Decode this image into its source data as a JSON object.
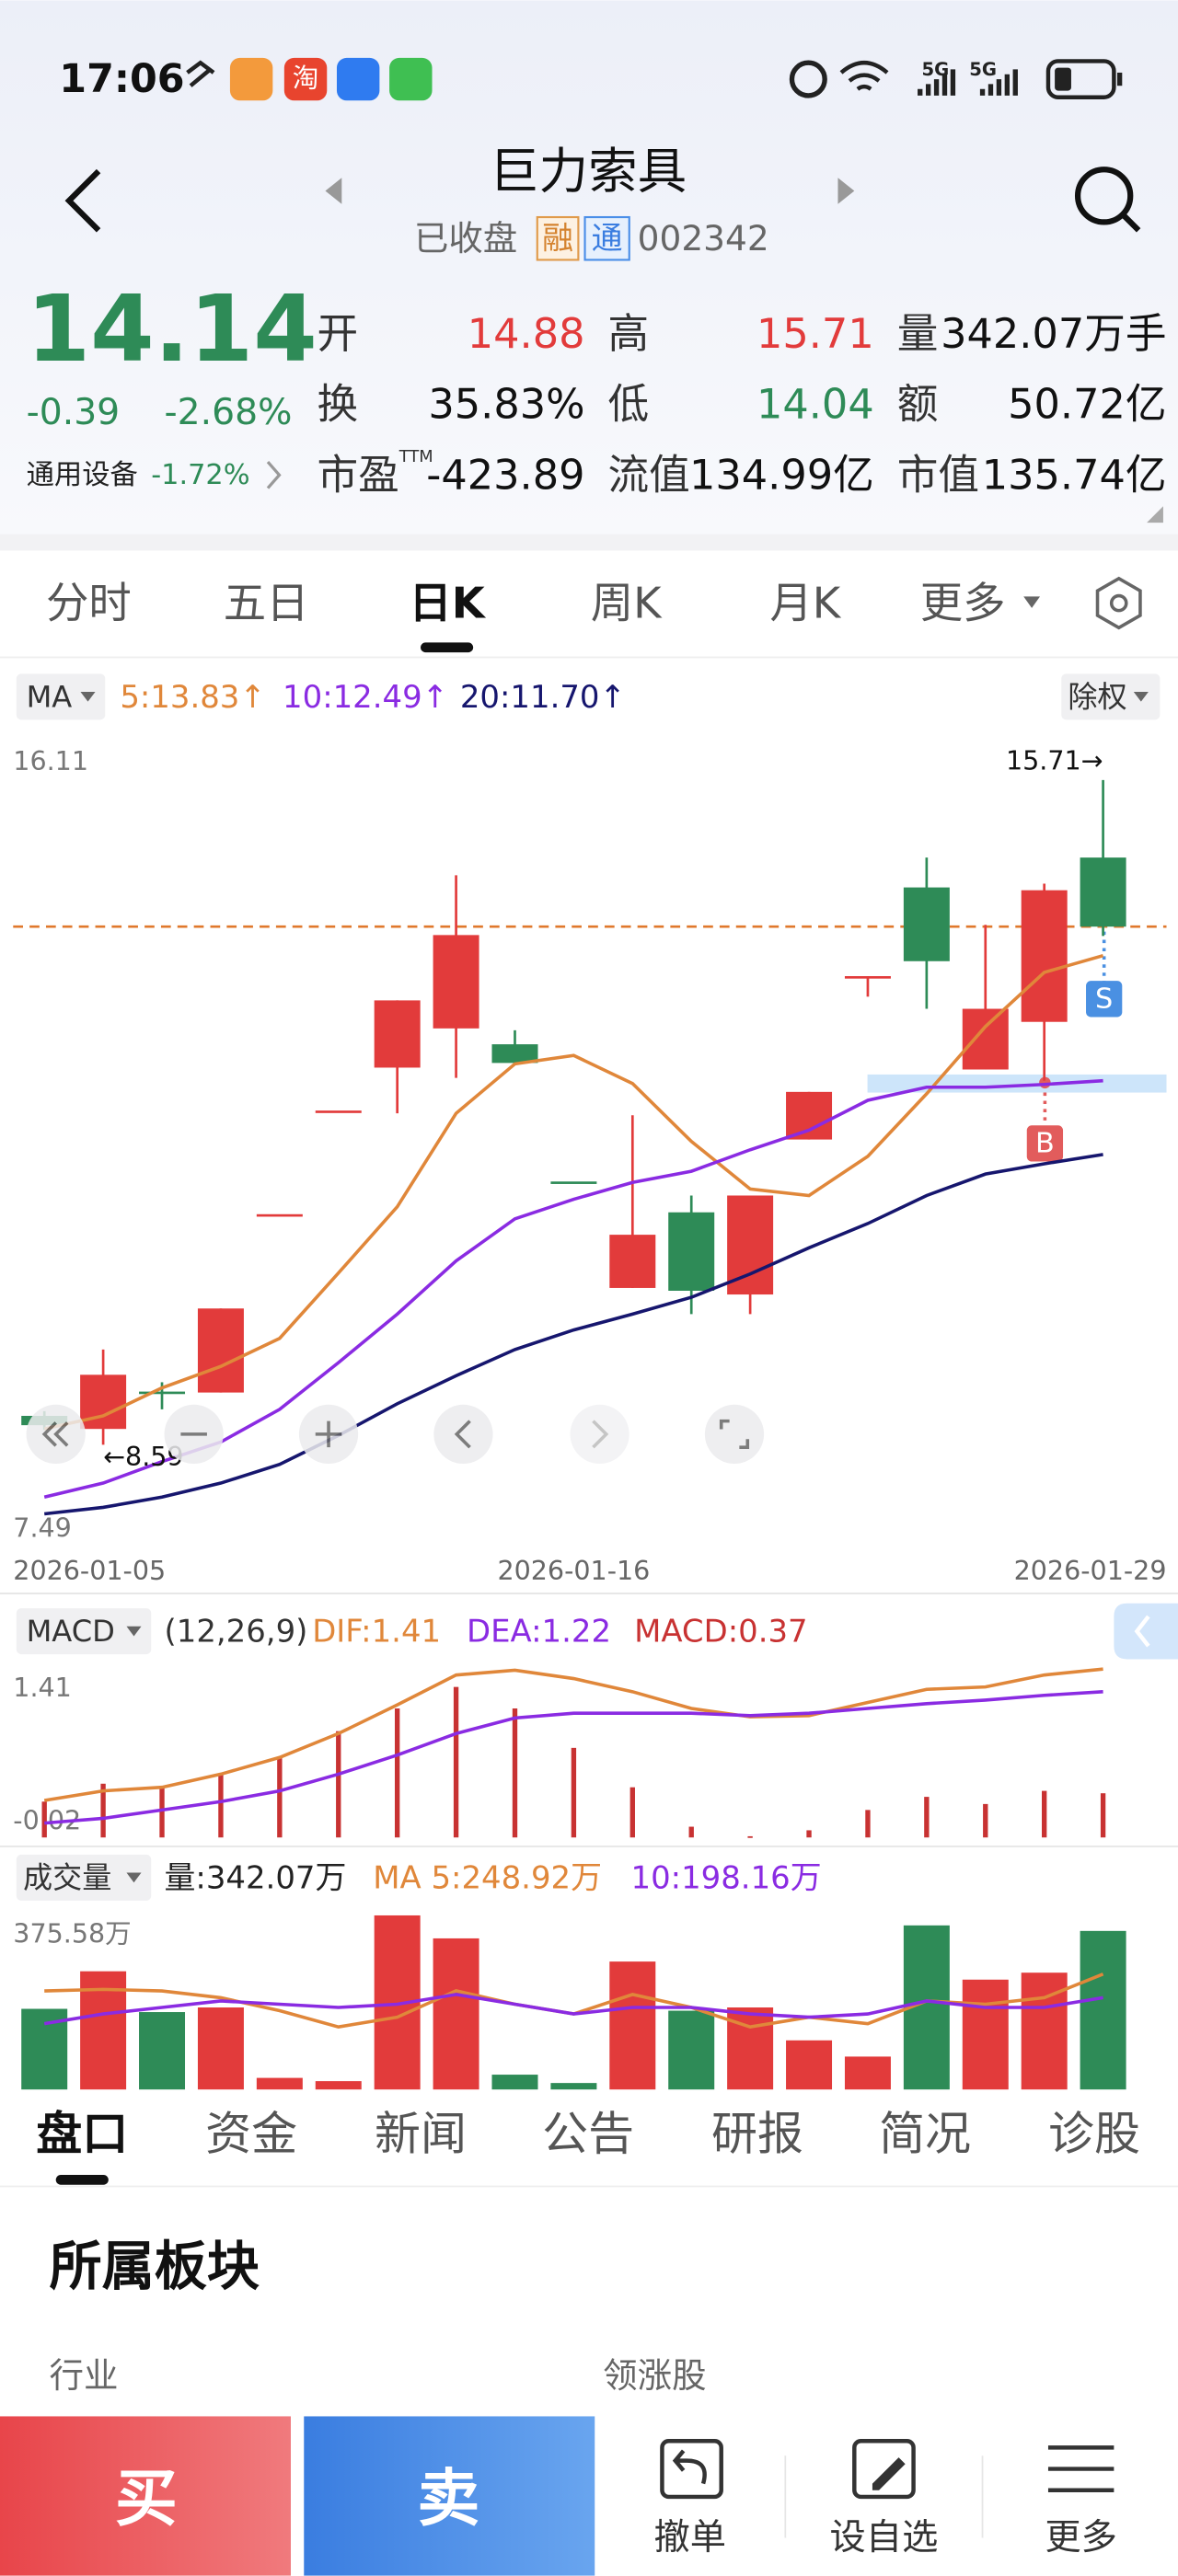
{
  "status_bar": {
    "time": "17:06",
    "app_icon_text": "淘",
    "network": [
      "5G",
      "5G"
    ]
  },
  "header": {
    "title": "巨力索具",
    "status": "已收盘",
    "badges": [
      "融",
      "通"
    ],
    "code": "002342"
  },
  "quote": {
    "price": "14.14",
    "change": "-0.39",
    "change_pct": "-2.68%",
    "sector": "通用设备",
    "sector_change": "-1.72%",
    "fields": [
      {
        "label": "开",
        "value": "14.88",
        "color": "#e23b3b"
      },
      {
        "label": "高",
        "value": "15.71",
        "color": "#e23b3b"
      },
      {
        "label": "量",
        "value": "342.07万手"
      },
      {
        "label": "换",
        "value": "35.83%"
      },
      {
        "label": "低",
        "value": "14.04",
        "color": "#2e8b57"
      },
      {
        "label": "额",
        "value": "50.72亿"
      },
      {
        "label": "市盈",
        "sup": "TTM",
        "value": "-423.89"
      },
      {
        "label": "流值",
        "value": "134.99亿"
      },
      {
        "label": "市值",
        "value": "135.74亿"
      }
    ]
  },
  "period_tabs": {
    "items": [
      "分时",
      "五日",
      "日K",
      "周K",
      "月K",
      "更多"
    ],
    "active": 2
  },
  "chart_data": [
    {
      "type": "candlestick",
      "selector": "MA",
      "adjust_button": "除权",
      "categories": [
        "2026-01-05",
        null,
        null,
        null,
        null,
        null,
        null,
        null,
        null,
        "2026-01-16",
        null,
        null,
        null,
        null,
        null,
        null,
        null,
        null,
        "2026-01-29"
      ],
      "open": [
        8.9,
        8.76,
        9.16,
        9.15,
        11.06,
        12.17,
        12.63,
        13.05,
        12.88,
        11.41,
        10.27,
        11.08,
        10.2,
        11.86,
        13.61,
        14.56,
        12.61,
        13.12,
        14.88
      ],
      "high": [
        8.95,
        9.61,
        9.26,
        10.05,
        11.06,
        12.17,
        13.35,
        14.69,
        13.03,
        11.41,
        12.12,
        11.26,
        11.26,
        12.37,
        13.61,
        14.88,
        14.16,
        14.6,
        15.71
      ],
      "low": [
        8.75,
        8.59,
        8.97,
        9.15,
        11.06,
        12.17,
        12.14,
        12.52,
        12.68,
        11.41,
        10.27,
        9.99,
        9.99,
        11.86,
        13.39,
        13.26,
        12.61,
        12.49,
        14.04
      ],
      "close": [
        8.8,
        9.34,
        9.15,
        10.05,
        11.06,
        12.17,
        13.35,
        14.05,
        12.68,
        11.41,
        10.84,
        10.24,
        11.26,
        12.37,
        13.61,
        13.77,
        13.26,
        14.53,
        14.14
      ],
      "up_color": "#e23b3b",
      "down_color": "#2e8b57",
      "series": [
        {
          "name": "5:13.83↑",
          "color": "#e0873a",
          "values": [
            8.76,
            8.9,
            9.2,
            9.43,
            9.73,
            10.43,
            11.14,
            12.14,
            12.67,
            12.76,
            12.46,
            11.84,
            11.33,
            11.26,
            11.68,
            12.35,
            13.07,
            13.65,
            13.83
          ]
        },
        {
          "name": "10:12.49↑",
          "color": "#8a2be2",
          "values": [
            8.03,
            8.18,
            8.41,
            8.62,
            8.97,
            9.47,
            9.99,
            10.56,
            11.01,
            11.22,
            11.4,
            11.52,
            11.75,
            11.96,
            12.28,
            12.42,
            12.42,
            12.45,
            12.49
          ]
        },
        {
          "name": "20:11.70↑",
          "color": "#16166e",
          "values": [
            7.85,
            7.92,
            8.03,
            8.18,
            8.38,
            8.69,
            9.03,
            9.33,
            9.61,
            9.82,
            9.99,
            10.17,
            10.42,
            10.7,
            10.96,
            11.26,
            11.49,
            11.6,
            11.7
          ]
        }
      ],
      "ylim": [
        7.49,
        16.11
      ],
      "yticks": [
        16.11,
        7.49
      ],
      "annotations": {
        "high": "15.71→",
        "low": "←8.59"
      },
      "trade_marks": [
        "S",
        "B"
      ]
    },
    {
      "type": "macd",
      "selector": "MACD",
      "params": "(12,26,9)",
      "series": [
        {
          "name": "DIF:1.41",
          "color": "#e0873a",
          "style": "line",
          "values": [
            0.31,
            0.39,
            0.42,
            0.53,
            0.67,
            0.87,
            1.11,
            1.36,
            1.4,
            1.33,
            1.22,
            1.08,
            1.01,
            1.02,
            1.13,
            1.24,
            1.26,
            1.36,
            1.41
          ]
        },
        {
          "name": "DEA:1.22",
          "color": "#8a2be2",
          "style": "line",
          "values": [
            0.12,
            0.16,
            0.23,
            0.3,
            0.39,
            0.53,
            0.69,
            0.87,
            1.0,
            1.04,
            1.04,
            1.04,
            1.02,
            1.04,
            1.08,
            1.12,
            1.15,
            1.19,
            1.22
          ]
        },
        {
          "name": "MACD:0.37",
          "color": "#c83232",
          "style": "bar",
          "values": [
            0.3,
            0.45,
            0.42,
            0.53,
            0.67,
            0.89,
            1.08,
            1.26,
            1.08,
            0.75,
            0.42,
            0.09,
            0.01,
            0.06,
            0.23,
            0.34,
            0.28,
            0.39,
            0.37
          ]
        }
      ],
      "ylim": [
        -0.02,
        1.41
      ],
      "yticks": [
        1.41,
        -0.02
      ]
    },
    {
      "type": "volume",
      "selector": "成交量",
      "series": [
        {
          "name": "量:342.07万",
          "style": "bar",
          "values": [
            174,
            255,
            167,
            177,
            25,
            18,
            375.58,
            326,
            32,
            14,
            276,
            170,
            177,
            106,
            71,
            354,
            237,
            252,
            342.07
          ]
        },
        {
          "name": "MA 5:248.92万",
          "color": "#e0873a",
          "style": "line",
          "values": [
            212.6,
            216,
            212.6,
            198,
            170,
            135,
            156,
            213,
            184,
            163,
            205,
            177,
            135,
            156,
            142,
            191,
            184,
            198,
            248.92
          ]
        },
        {
          "name": "10:198.16万",
          "color": "#8a2be2",
          "style": "line",
          "values": [
            142,
            163,
            177,
            191,
            184,
            177,
            184,
            205,
            184,
            163,
            177,
            177,
            163,
            156,
            163,
            191,
            177,
            177,
            198.16
          ]
        }
      ],
      "ylim": [
        0,
        375.58
      ],
      "yticks": [
        {
          "value": 375.58,
          "label": "375.58万"
        }
      ]
    }
  ],
  "detail_tabs": {
    "items": [
      "盘口",
      "资金",
      "新闻",
      "公告",
      "研报",
      "简况",
      "诊股"
    ],
    "active": 0
  },
  "section": {
    "title": "所属板块",
    "columns": [
      "行业",
      "领涨股"
    ]
  },
  "action_bar": {
    "buy": "买",
    "sell": "卖",
    "items": [
      "撤单",
      "设自选",
      "更多"
    ]
  }
}
